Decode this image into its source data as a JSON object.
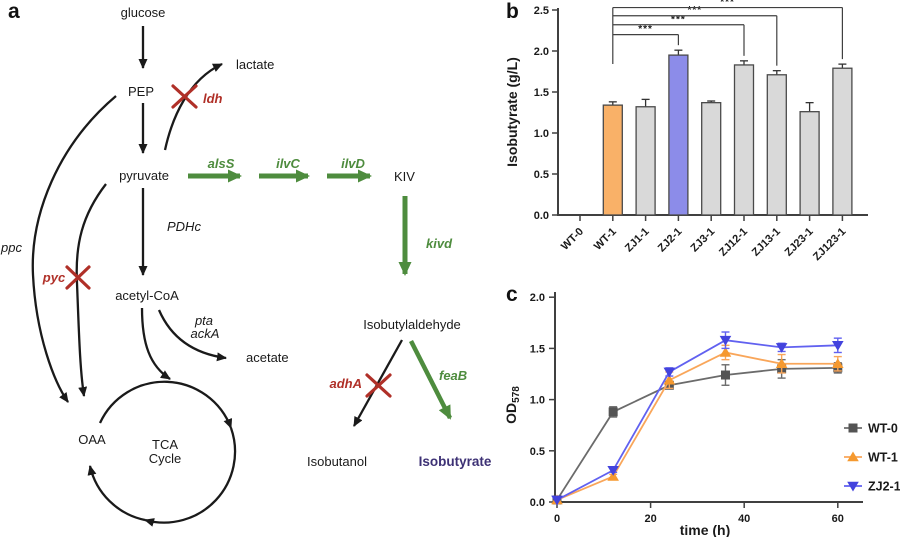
{
  "panel_labels": {
    "a": "a",
    "b": "b",
    "c": "c"
  },
  "pathway": {
    "metabolites": {
      "glucose": "glucose",
      "pep": "PEP",
      "lactate": "lactate",
      "pyruvate": "pyruvate",
      "acetyl_coa": "acetyl-CoA",
      "acetate": "acetate",
      "oaa": "OAA",
      "tca_line1": "TCA",
      "tca_line2": "Cycle",
      "kiv": "KIV",
      "isobutylaldehyde": "Isobutylaldehyde",
      "isobutanol": "Isobutanol",
      "isobutyrate": "Isobutyrate"
    },
    "genes": {
      "ppc": "ppc",
      "pyc": "pyc",
      "ldh": "ldh",
      "pdhc": "PDHc",
      "pta": "pta",
      "acka": "ackA",
      "alss": "alsS",
      "ilvc": "ilvC",
      "ilvd": "ilvD",
      "kivd": "kivd",
      "adha": "adhA",
      "feab": "feaB"
    },
    "colors": {
      "overexpression_green": "#4e8c3e",
      "knockout_red": "#b03028",
      "product_purple": "#3d3175",
      "line_black": "#1a1a1a"
    }
  },
  "chart_data": [
    {
      "id": "isobutyrate-bar-chart",
      "type": "bar",
      "ylabel": "Isobutyrate (g/L)",
      "ylim": [
        0,
        2.5
      ],
      "yticks": [
        0,
        0.5,
        1.0,
        1.5,
        2.0,
        2.5
      ],
      "categories": [
        "WT-0",
        "WT-1",
        "ZJ1-1",
        "ZJ2-1",
        "ZJ3-1",
        "ZJ12-1",
        "ZJ13-1",
        "ZJ23-1",
        "ZJ123-1"
      ],
      "values": [
        0,
        1.34,
        1.32,
        1.95,
        1.37,
        1.83,
        1.71,
        1.26,
        1.79
      ],
      "errors": [
        0,
        0.04,
        0.09,
        0.06,
        0.02,
        0.05,
        0.05,
        0.11,
        0.05
      ],
      "bar_colors": [
        "#d9d9d9",
        "#f9b168",
        "#d9d9d9",
        "#8c8ce9",
        "#d9d9d9",
        "#d9d9d9",
        "#d9d9d9",
        "#d9d9d9",
        "#d9d9d9"
      ],
      "bar_border": "#4a4a4a",
      "significance": [
        {
          "from": "WT-1",
          "to": "ZJ2-1",
          "label": "***",
          "level": 2.2
        },
        {
          "from": "WT-1",
          "to": "ZJ12-1",
          "label": "***",
          "level": 2.32
        },
        {
          "from": "WT-1",
          "to": "ZJ13-1",
          "label": "***",
          "level": 2.43
        },
        {
          "from": "WT-1",
          "to": "ZJ123-1",
          "label": "***",
          "level": 2.53
        }
      ]
    },
    {
      "id": "growth-curve-chart",
      "type": "line",
      "xlabel": "time (h)",
      "ylabel": "OD",
      "ylabel_sub": "578",
      "xlim": [
        0,
        65
      ],
      "ylim": [
        0,
        2.0
      ],
      "xticks": [
        0,
        20,
        40,
        60
      ],
      "yticks": [
        0,
        0.5,
        1.0,
        1.5,
        2.0
      ],
      "x": [
        0,
        12,
        24,
        36,
        48,
        60
      ],
      "legend_position": "right",
      "series": [
        {
          "name": "WT-0",
          "marker": "square",
          "color": "#6b6b6b",
          "marker_color": "#545454",
          "values": [
            0.02,
            0.88,
            1.14,
            1.24,
            1.3,
            1.31
          ],
          "errors": [
            0.01,
            0.05,
            0.03,
            0.1,
            0.09,
            0.05
          ]
        },
        {
          "name": "WT-1",
          "marker": "triangle-up",
          "color": "#f9a65a",
          "marker_color": "#f5992f",
          "values": [
            0.02,
            0.25,
            1.19,
            1.46,
            1.35,
            1.35
          ],
          "errors": [
            0.01,
            0.02,
            0.08,
            0.07,
            0.09,
            0.07
          ]
        },
        {
          "name": "ZJ2-1",
          "marker": "triangle-down",
          "color": "#6161f0",
          "marker_color": "#4343dd",
          "values": [
            0.02,
            0.31,
            1.27,
            1.58,
            1.51,
            1.53
          ],
          "errors": [
            0.01,
            0.02,
            0.04,
            0.08,
            0.04,
            0.07
          ]
        }
      ]
    }
  ]
}
